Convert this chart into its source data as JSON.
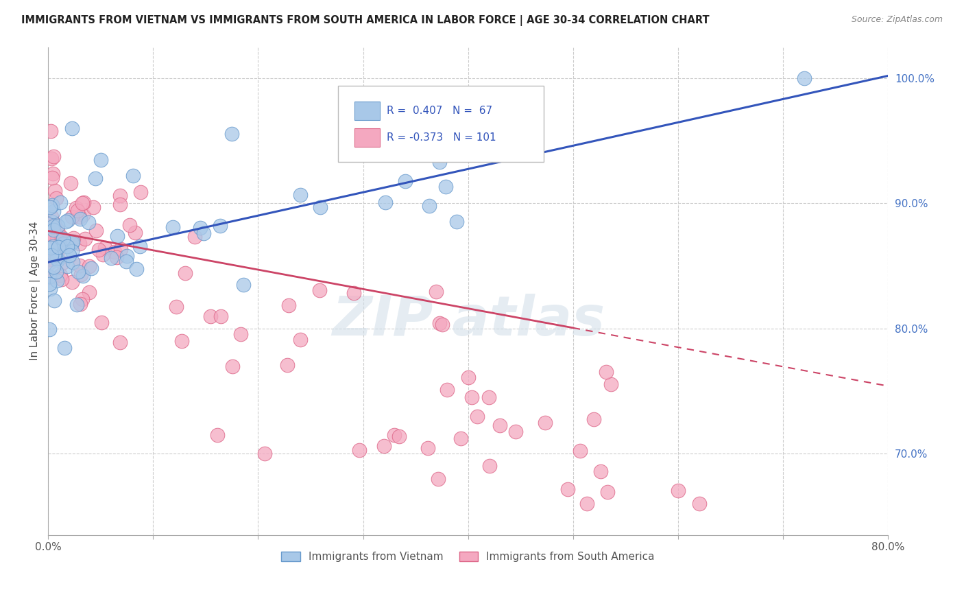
{
  "title": "IMMIGRANTS FROM VIETNAM VS IMMIGRANTS FROM SOUTH AMERICA IN LABOR FORCE | AGE 30-34 CORRELATION CHART",
  "source": "Source: ZipAtlas.com",
  "ylabel": "In Labor Force | Age 30-34",
  "x_label_vietnam": "Immigrants from Vietnam",
  "x_label_sa": "Immigrants from South America",
  "xlim": [
    0.0,
    0.8
  ],
  "ylim": [
    0.635,
    1.025
  ],
  "xtick_positions": [
    0.0,
    0.1,
    0.2,
    0.3,
    0.4,
    0.5,
    0.6,
    0.7,
    0.8
  ],
  "xtick_labels": [
    "0.0%",
    "",
    "",
    "",
    "",
    "",
    "",
    "",
    "80.0%"
  ],
  "ytick_vals_right": [
    0.7,
    0.8,
    0.9,
    1.0
  ],
  "ytick_labels_right": [
    "70.0%",
    "80.0%",
    "90.0%",
    "100.0%"
  ],
  "R_vietnam": 0.407,
  "N_vietnam": 67,
  "R_sa": -0.373,
  "N_sa": 101,
  "color_vietnam": "#a8c8e8",
  "color_sa": "#f4a8c0",
  "color_vietnam_edge": "#6699cc",
  "color_sa_edge": "#dd6688",
  "trend_blue": "#3355bb",
  "trend_pink": "#cc4466",
  "background_color": "#ffffff",
  "grid_color": "#cccccc",
  "legend_R_color": "#3355bb"
}
